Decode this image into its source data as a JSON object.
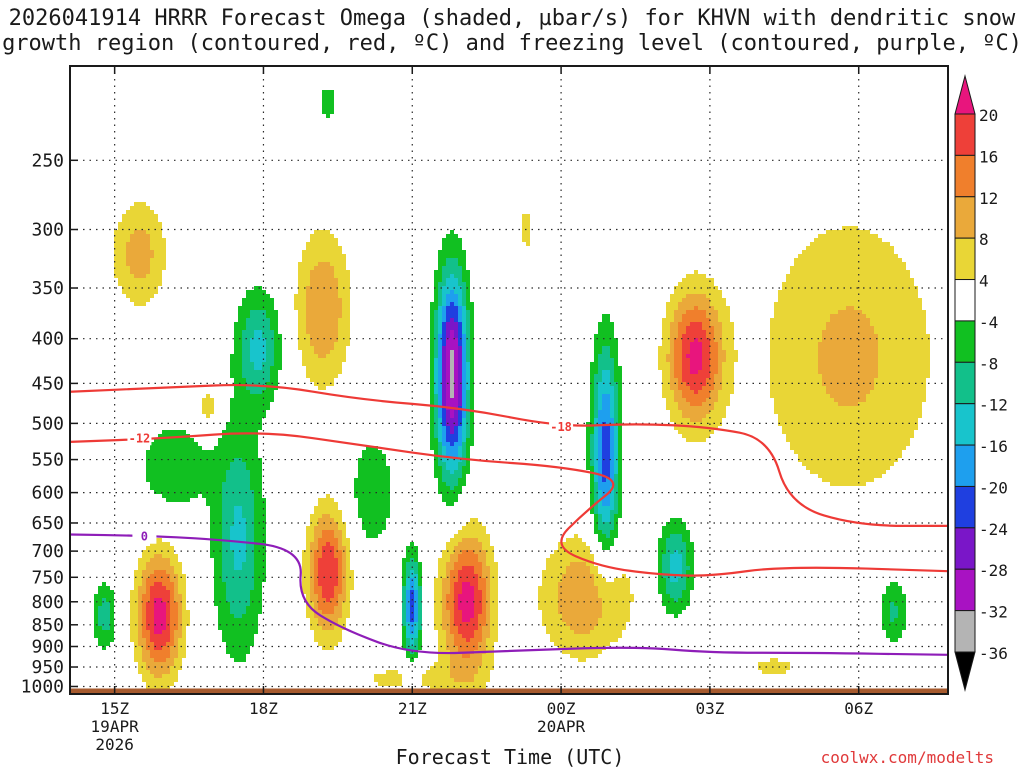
{
  "chart_data": {
    "type": "heatmap",
    "title": "2026041914 HRRR Forecast Omega (shaded, µbar/s) for KHVN with dendritic snow\ngrowth region (contoured, red, ºC) and freezing level (contoured, purple, ºC)",
    "xlabel": "Forecast Time (UTC)",
    "ylabel": "",
    "credit": "coolwx.com/modelts",
    "y_scale": "log-pressure",
    "y_inverted": true,
    "grid": true,
    "x_ticks": [
      {
        "h": 15,
        "lines": [
          "15Z",
          "19APR",
          "2026"
        ]
      },
      {
        "h": 18,
        "lines": [
          "18Z"
        ]
      },
      {
        "h": 21,
        "lines": [
          "21Z"
        ]
      },
      {
        "h": 24,
        "lines": [
          "00Z",
          "20APR"
        ]
      },
      {
        "h": 27,
        "lines": [
          "03Z"
        ]
      },
      {
        "h": 30,
        "lines": [
          "06Z"
        ]
      }
    ],
    "xlim": [
      14.1,
      31.8
    ],
    "y_ticks": [
      250,
      300,
      350,
      400,
      450,
      500,
      550,
      600,
      650,
      700,
      750,
      800,
      850,
      900,
      950,
      1000
    ],
    "ylim": [
      1020,
      195
    ],
    "colorbar": {
      "units": "µbar/s",
      "labels": [
        "20",
        "16",
        "12",
        "8",
        "4",
        "-4",
        "-8",
        "-12",
        "-16",
        "-20",
        "-24",
        "-28",
        "-32",
        "-36"
      ],
      "bins": [
        {
          "lo": 20,
          "hi": null,
          "color": "#e8157d"
        },
        {
          "lo": 16,
          "hi": 20,
          "color": "#ee4039"
        },
        {
          "lo": 12,
          "hi": 16,
          "color": "#f07f2c"
        },
        {
          "lo": 8,
          "hi": 12,
          "color": "#eaa93a"
        },
        {
          "lo": 4,
          "hi": 8,
          "color": "#e9d636"
        },
        {
          "lo": -4,
          "hi": 4,
          "color": "#ffffff"
        },
        {
          "lo": -8,
          "hi": -4,
          "color": "#11c021"
        },
        {
          "lo": -12,
          "hi": -8,
          "color": "#12c08a"
        },
        {
          "lo": -16,
          "hi": -12,
          "color": "#18c4cc"
        },
        {
          "lo": -20,
          "hi": -16,
          "color": "#1e9fee"
        },
        {
          "lo": -24,
          "hi": -20,
          "color": "#1f3fe0"
        },
        {
          "lo": -28,
          "hi": -24,
          "color": "#7a16c8"
        },
        {
          "lo": -32,
          "hi": -28,
          "color": "#a812c2"
        },
        {
          "lo": -36,
          "hi": -32,
          "color": "#b4b4b4"
        },
        {
          "lo": null,
          "hi": -36,
          "color": "#000000"
        }
      ]
    },
    "omega_centers": [
      {
        "h": 15.9,
        "p": 830,
        "peak": 22,
        "sh": 0.45,
        "sp": 0.16
      },
      {
        "h": 15.5,
        "p": 320,
        "peak": 10,
        "sh": 0.55,
        "sp": 0.14
      },
      {
        "h": 19.2,
        "p": 370,
        "peak": 12,
        "sh": 0.55,
        "sp": 0.2
      },
      {
        "h": 19.3,
        "p": 740,
        "peak": 20,
        "sh": 0.4,
        "sp": 0.16
      },
      {
        "h": 21.8,
        "p": 440,
        "peak": -34,
        "sh": 0.32,
        "sp": 0.26
      },
      {
        "h": 21.0,
        "p": 810,
        "peak": -22,
        "sh": 0.18,
        "sp": 0.13
      },
      {
        "h": 22.1,
        "p": 800,
        "peak": 22,
        "sh": 0.5,
        "sp": 0.18
      },
      {
        "h": 24.9,
        "p": 540,
        "peak": -22,
        "sh": 0.28,
        "sp": 0.28
      },
      {
        "h": 24.5,
        "p": 790,
        "peak": 12,
        "sh": 0.9,
        "sp": 0.16
      },
      {
        "h": 26.7,
        "p": 420,
        "peak": 21,
        "sh": 0.55,
        "sp": 0.17
      },
      {
        "h": 29.8,
        "p": 420,
        "peak": 9,
        "sh": 1.8,
        "sp": 0.38
      },
      {
        "h": 17.5,
        "p": 680,
        "peak": -13,
        "sh": 0.5,
        "sp": 0.3
      },
      {
        "h": 17.9,
        "p": 410,
        "peak": -13,
        "sh": 0.45,
        "sp": 0.15
      },
      {
        "h": 16.2,
        "p": 560,
        "peak": -8,
        "sh": 0.7,
        "sp": 0.12
      },
      {
        "h": 14.8,
        "p": 830,
        "peak": -10,
        "sh": 0.25,
        "sp": 0.09
      },
      {
        "h": 26.3,
        "p": 730,
        "peak": -14,
        "sh": 0.35,
        "sp": 0.12
      },
      {
        "h": 30.7,
        "p": 820,
        "peak": -9,
        "sh": 0.3,
        "sp": 0.09
      },
      {
        "h": 20.2,
        "p": 600,
        "peak": -8,
        "sh": 0.45,
        "sp": 0.15
      },
      {
        "h": 20.9,
        "p": 980,
        "peak": 5,
        "sh": 1.5,
        "sp": 0.05
      },
      {
        "h": 28.3,
        "p": 950,
        "peak": 5,
        "sh": 0.7,
        "sp": 0.04
      },
      {
        "h": 16.9,
        "p": 480,
        "peak": 7,
        "sh": 0.22,
        "sp": 0.06
      },
      {
        "h": 19.3,
        "p": 215,
        "peak": -6,
        "sh": 0.22,
        "sp": 0.06
      },
      {
        "h": 23.3,
        "p": 300,
        "peak": 5,
        "sh": 0.2,
        "sp": 0.09
      }
    ],
    "contours": [
      {
        "name": "-18",
        "color": "#ee3a36",
        "label_at": {
          "h": 24.0,
          "p": 505
        },
        "points": [
          [
            14.1,
            460
          ],
          [
            16,
            455
          ],
          [
            18,
            450
          ],
          [
            20,
            470
          ],
          [
            22,
            480
          ],
          [
            24,
            505
          ],
          [
            25.5,
            500
          ],
          [
            27,
            505
          ],
          [
            28.2,
            520
          ],
          [
            28.6,
            620
          ],
          [
            30,
            655
          ],
          [
            31.8,
            655
          ]
        ]
      },
      {
        "name": "-12",
        "color": "#ee3a36",
        "label_at": {
          "h": 15.5,
          "p": 520
        },
        "points": [
          [
            14.1,
            525
          ],
          [
            16,
            520
          ],
          [
            18,
            510
          ],
          [
            20,
            530
          ],
          [
            22,
            550
          ],
          [
            24,
            560
          ],
          [
            25.3,
            580
          ],
          [
            24.5,
            630
          ],
          [
            23.8,
            690
          ],
          [
            24.8,
            730
          ],
          [
            26,
            745
          ],
          [
            27,
            748
          ],
          [
            28.5,
            728
          ],
          [
            31.8,
            738
          ]
        ]
      },
      {
        "name": "0",
        "color": "#8e1db8",
        "label_at": {
          "h": 15.6,
          "p": 674
        },
        "points": [
          [
            14.1,
            670
          ],
          [
            15.5,
            672
          ],
          [
            17,
            678
          ],
          [
            18.8,
            695
          ],
          [
            18.7,
            800
          ],
          [
            19.6,
            860
          ],
          [
            21,
            920
          ],
          [
            23,
            910
          ],
          [
            25.5,
            900
          ],
          [
            27,
            915
          ],
          [
            29,
            915
          ],
          [
            31.8,
            920
          ]
        ]
      }
    ]
  }
}
